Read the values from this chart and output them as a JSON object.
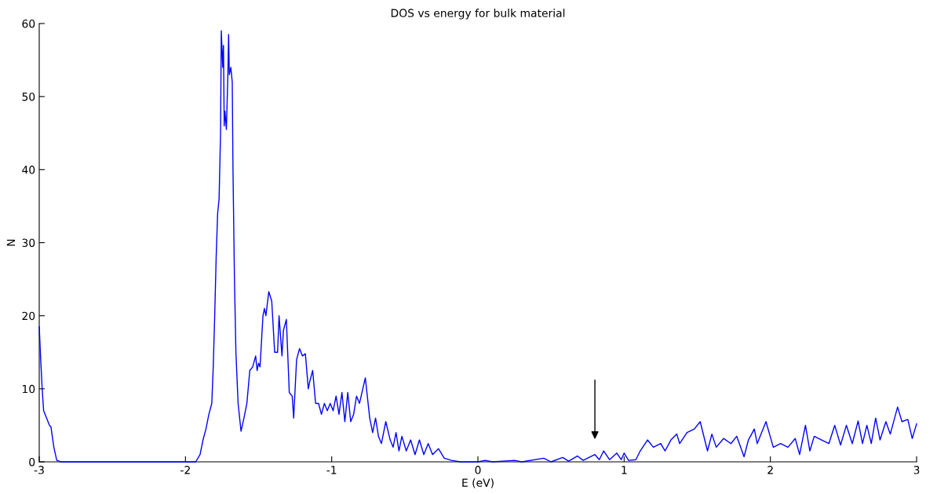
{
  "chart_data": {
    "type": "line",
    "title": "DOS vs energy for bulk material",
    "xlabel": "E (eV)",
    "ylabel": "N",
    "xlim": [
      -3,
      3
    ],
    "ylim": [
      0,
      60
    ],
    "xticks": [
      -3,
      -2,
      -1,
      0,
      1,
      2,
      3
    ],
    "yticks": [
      0,
      10,
      20,
      30,
      40,
      50,
      60
    ],
    "grid": false,
    "legend": false,
    "series": [
      {
        "color": "#0000ff",
        "x": [
          -3,
          -2.99,
          -2.98,
          -2.97,
          -2.95,
          -2.93,
          -2.92,
          -2.9,
          -2.88,
          -2.85,
          -1.93,
          -1.9,
          -1.88,
          -1.86,
          -1.84,
          -1.82,
          -1.81,
          -1.8,
          -1.79,
          -1.78,
          -1.77,
          -1.76,
          -1.755,
          -1.745,
          -1.74,
          -1.735,
          -1.73,
          -1.72,
          -1.71,
          -1.705,
          -1.7,
          -1.69,
          -1.68,
          -1.675,
          -1.665,
          -1.655,
          -1.64,
          -1.62,
          -1.6,
          -1.58,
          -1.56,
          -1.54,
          -1.52,
          -1.51,
          -1.5,
          -1.49,
          -1.47,
          -1.46,
          -1.45,
          -1.43,
          -1.41,
          -1.39,
          -1.37,
          -1.36,
          -1.34,
          -1.33,
          -1.31,
          -1.29,
          -1.27,
          -1.26,
          -1.24,
          -1.22,
          -1.2,
          -1.18,
          -1.16,
          -1.15,
          -1.13,
          -1.11,
          -1.09,
          -1.07,
          -1.05,
          -1.03,
          -1.01,
          -0.99,
          -0.97,
          -0.95,
          -0.93,
          -0.91,
          -0.89,
          -0.87,
          -0.85,
          -0.83,
          -0.81,
          -0.77,
          -0.74,
          -0.72,
          -0.7,
          -0.68,
          -0.66,
          -0.63,
          -0.6,
          -0.58,
          -0.56,
          -0.54,
          -0.52,
          -0.49,
          -0.46,
          -0.43,
          -0.4,
          -0.37,
          -0.34,
          -0.31,
          -0.27,
          -0.23,
          -0.18,
          -0.12,
          0,
          0.05,
          0.1,
          0.25,
          0.3,
          0.45,
          0.5,
          0.58,
          0.62,
          0.68,
          0.72,
          0.8,
          0.83,
          0.86,
          0.9,
          0.95,
          0.98,
          1.0,
          1.03,
          1.08,
          1.11,
          1.16,
          1.2,
          1.25,
          1.28,
          1.32,
          1.36,
          1.38,
          1.43,
          1.48,
          1.52,
          1.57,
          1.6,
          1.63,
          1.68,
          1.73,
          1.77,
          1.82,
          1.85,
          1.89,
          1.91,
          1.97,
          2.02,
          2.07,
          2.12,
          2.17,
          2.2,
          2.24,
          2.27,
          2.3,
          2.35,
          2.4,
          2.44,
          2.48,
          2.52,
          2.56,
          2.6,
          2.63,
          2.66,
          2.69,
          2.72,
          2.75,
          2.79,
          2.82,
          2.87,
          2.9,
          2.94,
          2.97,
          3.0
        ],
        "values": [
          18.5,
          14,
          10,
          7,
          6,
          5,
          4.8,
          2,
          0.2,
          0,
          0,
          1,
          3,
          4.5,
          6.5,
          8,
          13,
          20,
          28,
          34,
          36,
          45,
          59,
          54,
          57,
          46,
          48,
          45.5,
          53,
          58.5,
          53,
          54,
          52,
          40,
          25,
          15,
          8,
          4.2,
          6,
          8,
          12.5,
          13,
          14.5,
          12.5,
          13.5,
          13,
          20,
          21,
          20,
          23.3,
          22,
          15,
          15,
          20,
          14.5,
          18,
          19.5,
          9.5,
          9,
          6,
          14,
          15.5,
          14.5,
          14.8,
          10,
          11,
          12.5,
          8,
          8,
          6.5,
          8,
          7,
          8,
          7,
          9,
          6.5,
          9.5,
          5.5,
          9.5,
          5.5,
          6.5,
          9,
          8,
          11.5,
          6,
          4,
          6,
          3.5,
          2.5,
          5.5,
          3,
          2,
          4,
          1.5,
          3.5,
          1.5,
          3,
          1,
          3,
          1,
          2.5,
          1,
          1.8,
          0.5,
          0.2,
          0,
          0,
          0.2,
          0,
          0.2,
          0,
          0.5,
          0,
          0.6,
          0.1,
          0.8,
          0.2,
          1,
          0.3,
          1.5,
          0.3,
          1.2,
          0.3,
          1.2,
          0.2,
          0.3,
          1.5,
          3,
          2,
          2.5,
          1.5,
          3,
          3.8,
          2.5,
          4,
          4.5,
          5.5,
          1.5,
          3.8,
          2,
          3.2,
          2.5,
          3.5,
          0.7,
          3,
          4.5,
          2.5,
          5.5,
          2,
          2.5,
          2,
          3.2,
          1,
          5,
          1.5,
          3.5,
          3,
          2.5,
          5,
          2.3,
          5,
          2.5,
          5.6,
          2.5,
          5,
          2.5,
          6,
          3,
          5.5,
          3.8,
          7.5,
          5.5,
          5.8,
          3.2,
          5.2
        ]
      }
    ]
  }
}
